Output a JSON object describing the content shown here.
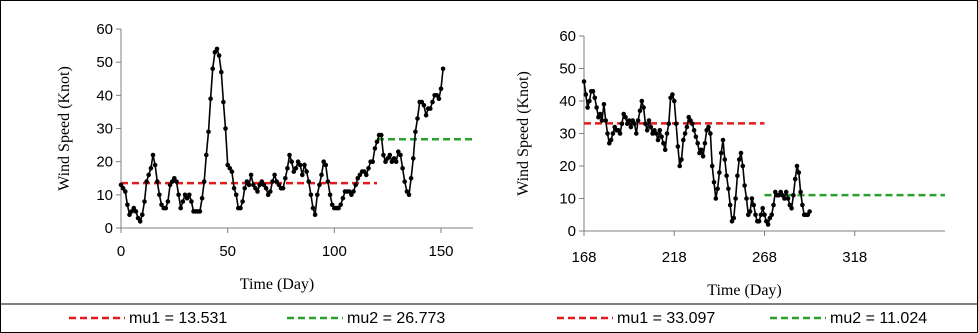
{
  "chart_data": [
    {
      "type": "line",
      "xlabel": "Time (Day)",
      "ylabel": "Wind Speed (Knot)",
      "xlim": [
        0,
        165
      ],
      "ylim": [
        0,
        60
      ],
      "xticks": [
        "0",
        "50",
        "100",
        "150"
      ],
      "yticks": [
        "0",
        "10",
        "20",
        "30",
        "40",
        "50",
        "60"
      ],
      "grid": false,
      "series": [
        {
          "color": "#000000",
          "points": [
            [
              0,
              13
            ],
            [
              1,
              12
            ],
            [
              2,
              11
            ],
            [
              3,
              7
            ],
            [
              4,
              4
            ],
            [
              5,
              5
            ],
            [
              6,
              6
            ],
            [
              7,
              5
            ],
            [
              8,
              3
            ],
            [
              9,
              2
            ],
            [
              10,
              4
            ],
            [
              11,
              8
            ],
            [
              12,
              14
            ],
            [
              13,
              16
            ],
            [
              14,
              18
            ],
            [
              15,
              22
            ],
            [
              16,
              19
            ],
            [
              17,
              14
            ],
            [
              18,
              10
            ],
            [
              19,
              7
            ],
            [
              20,
              6
            ],
            [
              21,
              6
            ],
            [
              22,
              8
            ],
            [
              23,
              13
            ],
            [
              24,
              14
            ],
            [
              25,
              15
            ],
            [
              26,
              14
            ],
            [
              27,
              10
            ],
            [
              28,
              6
            ],
            [
              29,
              8
            ],
            [
              30,
              10
            ],
            [
              31,
              9
            ],
            [
              32,
              10
            ],
            [
              33,
              8
            ],
            [
              34,
              5
            ],
            [
              35,
              5
            ],
            [
              36,
              5
            ],
            [
              37,
              5
            ],
            [
              38,
              9
            ],
            [
              39,
              14
            ],
            [
              40,
              22
            ],
            [
              41,
              29
            ],
            [
              42,
              39
            ],
            [
              43,
              48
            ],
            [
              44,
              53
            ],
            [
              45,
              54
            ],
            [
              46,
              52
            ],
            [
              47,
              47
            ],
            [
              48,
              38
            ],
            [
              49,
              30
            ],
            [
              50,
              19
            ],
            [
              51,
              18
            ],
            [
              52,
              17
            ],
            [
              53,
              12
            ],
            [
              54,
              10
            ],
            [
              55,
              6
            ],
            [
              56,
              6
            ],
            [
              57,
              8
            ],
            [
              58,
              12
            ],
            [
              59,
              14
            ],
            [
              60,
              13
            ],
            [
              61,
              16
            ],
            [
              62,
              13
            ],
            [
              63,
              12
            ],
            [
              64,
              11
            ],
            [
              65,
              13
            ],
            [
              66,
              14
            ],
            [
              67,
              13
            ],
            [
              68,
              12
            ],
            [
              69,
              10
            ],
            [
              70,
              11
            ],
            [
              71,
              14
            ],
            [
              72,
              16
            ],
            [
              73,
              14
            ],
            [
              74,
              13
            ],
            [
              75,
              12
            ],
            [
              76,
              12
            ],
            [
              77,
              15
            ],
            [
              78,
              18
            ],
            [
              79,
              22
            ],
            [
              80,
              20
            ],
            [
              81,
              17
            ],
            [
              82,
              18
            ],
            [
              83,
              20
            ],
            [
              84,
              19
            ],
            [
              85,
              16
            ],
            [
              86,
              19
            ],
            [
              87,
              17
            ],
            [
              88,
              14
            ],
            [
              89,
              10
            ],
            [
              90,
              6
            ],
            [
              91,
              4
            ],
            [
              92,
              10
            ],
            [
              93,
              13
            ],
            [
              94,
              16
            ],
            [
              95,
              20
            ],
            [
              96,
              19
            ],
            [
              97,
              14
            ],
            [
              98,
              10
            ],
            [
              99,
              7
            ],
            [
              100,
              6
            ],
            [
              101,
              6
            ],
            [
              102,
              6
            ],
            [
              103,
              7
            ],
            [
              104,
              9
            ],
            [
              105,
              11
            ],
            [
              106,
              11
            ],
            [
              107,
              11
            ],
            [
              108,
              10
            ],
            [
              109,
              11
            ],
            [
              110,
              13
            ],
            [
              111,
              15
            ],
            [
              112,
              16
            ],
            [
              113,
              17
            ],
            [
              114,
              17
            ],
            [
              115,
              16
            ],
            [
              116,
              18
            ],
            [
              117,
              20
            ],
            [
              118,
              20
            ],
            [
              119,
              24
            ],
            [
              120,
              26
            ],
            [
              121,
              28
            ],
            [
              122,
              28
            ],
            [
              123,
              22
            ],
            [
              124,
              20
            ],
            [
              125,
              21
            ],
            [
              126,
              22
            ],
            [
              127,
              20
            ],
            [
              128,
              21
            ],
            [
              129,
              20
            ],
            [
              130,
              23
            ],
            [
              131,
              22
            ],
            [
              132,
              18
            ],
            [
              133,
              14
            ],
            [
              134,
              11
            ],
            [
              135,
              10
            ],
            [
              136,
              15
            ],
            [
              137,
              21
            ],
            [
              138,
              29
            ],
            [
              139,
              33
            ],
            [
              140,
              38
            ],
            [
              141,
              38
            ],
            [
              142,
              37
            ],
            [
              143,
              34
            ],
            [
              144,
              36
            ],
            [
              145,
              36
            ],
            [
              146,
              38
            ],
            [
              147,
              40
            ],
            [
              148,
              40
            ],
            [
              149,
              39
            ],
            [
              150,
              42
            ],
            [
              151,
              48
            ]
          ]
        }
      ],
      "reference_lines": [
        {
          "label": "mu1 = 13.531",
          "y": 13.531,
          "x_start": 0,
          "x_end": 120,
          "color": "#e41a1c"
        },
        {
          "label": "mu2 = 26.773",
          "y": 26.773,
          "x_start": 120,
          "x_end": 165,
          "color": "#2ca02c"
        }
      ]
    },
    {
      "type": "line",
      "xlabel": "Time (Day)",
      "ylabel": "Wind Speed (Knot)",
      "xlim": [
        168,
        368
      ],
      "ylim": [
        0,
        60
      ],
      "xticks": [
        "168",
        "218",
        "268",
        "318"
      ],
      "yticks": [
        "0",
        "10",
        "20",
        "30",
        "40",
        "50",
        "60"
      ],
      "grid": false,
      "series": [
        {
          "color": "#000000",
          "points": [
            [
              168,
              46
            ],
            [
              169,
              42
            ],
            [
              170,
              38
            ],
            [
              171,
              40
            ],
            [
              172,
              43
            ],
            [
              173,
              43
            ],
            [
              174,
              41
            ],
            [
              175,
              38
            ],
            [
              176,
              35
            ],
            [
              177,
              36
            ],
            [
              178,
              34
            ],
            [
              179,
              39
            ],
            [
              180,
              34
            ],
            [
              181,
              30
            ],
            [
              182,
              27
            ],
            [
              183,
              28
            ],
            [
              184,
              30
            ],
            [
              185,
              32
            ],
            [
              186,
              31
            ],
            [
              187,
              31
            ],
            [
              188,
              30
            ],
            [
              189,
              33
            ],
            [
              190,
              36
            ],
            [
              191,
              35
            ],
            [
              192,
              33
            ],
            [
              193,
              34
            ],
            [
              194,
              32
            ],
            [
              195,
              34
            ],
            [
              196,
              33
            ],
            [
              197,
              30
            ],
            [
              198,
              34
            ],
            [
              199,
              37
            ],
            [
              200,
              40
            ],
            [
              201,
              38
            ],
            [
              202,
              33
            ],
            [
              203,
              31
            ],
            [
              204,
              34
            ],
            [
              205,
              32
            ],
            [
              206,
              30
            ],
            [
              207,
              31
            ],
            [
              208,
              30
            ],
            [
              209,
              28
            ],
            [
              210,
              31
            ],
            [
              211,
              29
            ],
            [
              212,
              27
            ],
            [
              213,
              25
            ],
            [
              214,
              30
            ],
            [
              215,
              33
            ],
            [
              216,
              41
            ],
            [
              217,
              42
            ],
            [
              218,
              40
            ],
            [
              219,
              33
            ],
            [
              220,
              26
            ],
            [
              221,
              20
            ],
            [
              222,
              22
            ],
            [
              223,
              28
            ],
            [
              224,
              30
            ],
            [
              225,
              32
            ],
            [
              226,
              35
            ],
            [
              227,
              34
            ],
            [
              228,
              33
            ],
            [
              229,
              31
            ],
            [
              230,
              29
            ],
            [
              231,
              27
            ],
            [
              232,
              24
            ],
            [
              233,
              25
            ],
            [
              234,
              23
            ],
            [
              235,
              27
            ],
            [
              236,
              31
            ],
            [
              237,
              32
            ],
            [
              238,
              30
            ],
            [
              239,
              20
            ],
            [
              240,
              15
            ],
            [
              241,
              10
            ],
            [
              242,
              13
            ],
            [
              243,
              18
            ],
            [
              244,
              24
            ],
            [
              245,
              28
            ],
            [
              246,
              22
            ],
            [
              247,
              17
            ],
            [
              248,
              13
            ],
            [
              249,
              8
            ],
            [
              250,
              3
            ],
            [
              251,
              4
            ],
            [
              252,
              10
            ],
            [
              253,
              17
            ],
            [
              254,
              22
            ],
            [
              255,
              24
            ],
            [
              256,
              20
            ],
            [
              257,
              14
            ],
            [
              258,
              10
            ],
            [
              259,
              5
            ],
            [
              260,
              6
            ],
            [
              261,
              10
            ],
            [
              262,
              8
            ],
            [
              263,
              5
            ],
            [
              264,
              3
            ],
            [
              265,
              3
            ],
            [
              266,
              5
            ],
            [
              267,
              7
            ],
            [
              268,
              5
            ],
            [
              269,
              3
            ],
            [
              270,
              2
            ],
            [
              271,
              4
            ],
            [
              272,
              5
            ],
            [
              273,
              8
            ],
            [
              274,
              12
            ],
            [
              275,
              11
            ],
            [
              276,
              11
            ],
            [
              277,
              12
            ],
            [
              278,
              11
            ],
            [
              279,
              10
            ],
            [
              280,
              12
            ],
            [
              281,
              10
            ],
            [
              282,
              8
            ],
            [
              283,
              7
            ],
            [
              284,
              11
            ],
            [
              285,
              16
            ],
            [
              286,
              20
            ],
            [
              287,
              18
            ],
            [
              288,
              12
            ],
            [
              289,
              8
            ],
            [
              290,
              5
            ],
            [
              291,
              5
            ],
            [
              292,
              5
            ],
            [
              293,
              6
            ]
          ]
        }
      ],
      "reference_lines": [
        {
          "label": "mu1 = 33.097",
          "y": 33.097,
          "x_start": 168,
          "x_end": 268,
          "color": "#e41a1c"
        },
        {
          "label": "mu2 = 11.024",
          "y": 11.024,
          "x_start": 268,
          "x_end": 368,
          "color": "#2ca02c"
        }
      ]
    }
  ]
}
